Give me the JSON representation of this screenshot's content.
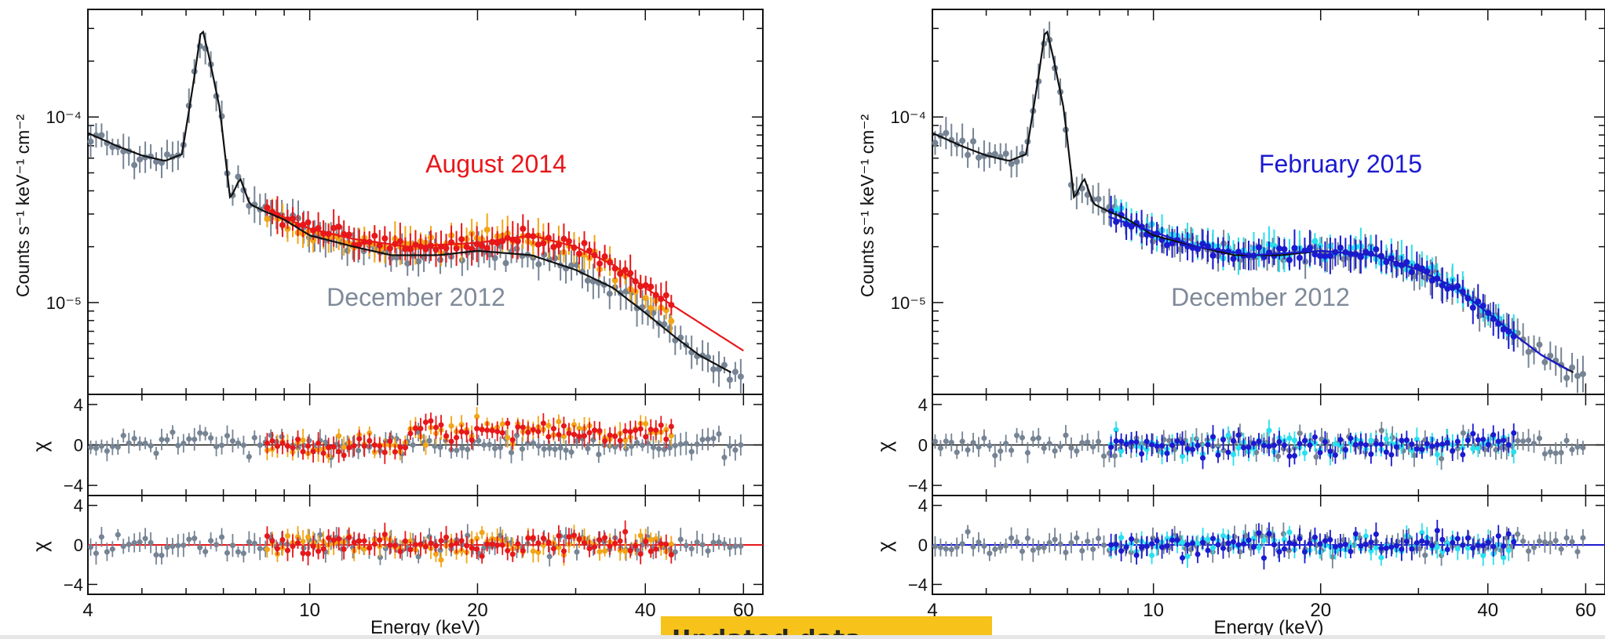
{
  "chart_data": [
    {
      "type": "scatter",
      "title": "",
      "annotations": [
        "August 2014",
        "December 2012"
      ],
      "annotation_colors": [
        "#e8171a",
        "#7f8a99"
      ],
      "xlabel": "Energy (keV)",
      "xscale": "log",
      "xlim": [
        4,
        65
      ],
      "xticks": [
        4,
        10,
        20,
        40,
        60
      ],
      "ylabel": "Counts s⁻¹ keV⁻¹ cm⁻²",
      "yscale": "log",
      "ylim": [
        3.2e-06,
        0.00038
      ],
      "yticks": [
        {
          "value": 0.0001,
          "label": "10⁻⁴"
        },
        {
          "value": 1e-05,
          "label": "10⁻⁵"
        }
      ],
      "residual_ylabel": "χ",
      "residual_ylim": [
        -5,
        5
      ],
      "residual_yticks": [
        4,
        0,
        -4
      ],
      "series": [
        {
          "color": "#768494",
          "model": {
            "color": "#111111",
            "points": [
              [
                4.0,
                8.2e-05
              ],
              [
                4.5,
                7e-05
              ],
              [
                5.0,
                6.2e-05
              ],
              [
                5.5,
                5.8e-05
              ],
              [
                5.9,
                6.3e-05
              ],
              [
                6.2,
                0.00016
              ],
              [
                6.4,
                0.00031
              ],
              [
                6.6,
                0.00021
              ],
              [
                6.9,
                0.00011
              ],
              [
                7.2,
                3.6e-05
              ],
              [
                7.5,
                4.7e-05
              ],
              [
                7.8,
                3.4e-05
              ],
              [
                8.3,
                3.1e-05
              ],
              [
                9.0,
                2.8e-05
              ],
              [
                10,
                2.3e-05
              ],
              [
                12,
                2e-05
              ],
              [
                14,
                1.8e-05
              ],
              [
                17,
                1.8e-05
              ],
              [
                20,
                1.9e-05
              ],
              [
                25,
                1.8e-05
              ],
              [
                30,
                1.5e-05
              ],
              [
                35,
                1.2e-05
              ],
              [
                40,
                8.8e-06
              ],
              [
                45,
                6.6e-06
              ],
              [
                50,
                5.2e-06
              ],
              [
                57,
                4.2e-06
              ]
            ]
          }
        },
        {
          "color": "#f2a516",
          "x_range": [
            8.3,
            45
          ]
        },
        {
          "color": "#e8171a",
          "model": {
            "color": "#e8171a",
            "points": [
              [
                8.3,
                3.2e-05
              ],
              [
                10,
                2.5e-05
              ],
              [
                12,
                2.2e-05
              ],
              [
                15,
                2e-05
              ],
              [
                20,
                2.1e-05
              ],
              [
                25,
                2.3e-05
              ],
              [
                30,
                2e-05
              ],
              [
                35,
                1.6e-05
              ],
              [
                40,
                1.2e-05
              ],
              [
                50,
                7.8e-06
              ],
              [
                60,
                5.5e-06
              ]
            ]
          }
        }
      ]
    },
    {
      "type": "scatter",
      "title": "",
      "annotations": [
        "February 2015",
        "December 2012"
      ],
      "annotation_colors": [
        "#1c1ad0",
        "#7f8a99"
      ],
      "xlabel": "Energy (keV)",
      "xscale": "log",
      "xlim": [
        4,
        65
      ],
      "xticks": [
        4,
        10,
        20,
        40,
        60
      ],
      "ylabel": "Counts s⁻¹ keV⁻¹ cm⁻²",
      "yscale": "log",
      "ylim": [
        3.2e-06,
        0.00038
      ],
      "yticks": [
        {
          "value": 0.0001,
          "label": "10⁻⁴"
        },
        {
          "value": 1e-05,
          "label": "10⁻⁵"
        }
      ],
      "residual_ylabel": "χ",
      "residual_ylim": [
        -5,
        5
      ],
      "residual_yticks": [
        4,
        0,
        -4
      ],
      "series": [
        {
          "color": "#768494",
          "model": {
            "color": "#111111",
            "points": [
              [
                4.0,
                8.2e-05
              ],
              [
                4.5,
                7e-05
              ],
              [
                5.0,
                6.2e-05
              ],
              [
                5.5,
                5.8e-05
              ],
              [
                5.9,
                6.3e-05
              ],
              [
                6.2,
                0.00016
              ],
              [
                6.4,
                0.00031
              ],
              [
                6.6,
                0.00021
              ],
              [
                6.9,
                0.00011
              ],
              [
                7.2,
                3.6e-05
              ],
              [
                7.5,
                4.7e-05
              ],
              [
                7.8,
                3.4e-05
              ],
              [
                8.3,
                3.1e-05
              ],
              [
                9.0,
                2.8e-05
              ],
              [
                10,
                2.3e-05
              ],
              [
                12,
                2e-05
              ],
              [
                14,
                1.8e-05
              ],
              [
                17,
                1.8e-05
              ],
              [
                20,
                1.9e-05
              ],
              [
                25,
                1.8e-05
              ],
              [
                30,
                1.5e-05
              ],
              [
                35,
                1.2e-05
              ],
              [
                40,
                8.8e-06
              ],
              [
                45,
                6.6e-06
              ],
              [
                50,
                5.2e-06
              ],
              [
                57,
                4.2e-06
              ]
            ]
          }
        },
        {
          "color": "#28e0ee",
          "x_range": [
            8.3,
            45
          ]
        },
        {
          "color": "#1c1ad0",
          "model": {
            "color": "#1c1ad0",
            "points": [
              [
                8.3,
                2.9e-05
              ],
              [
                10,
                2.4e-05
              ],
              [
                12,
                2e-05
              ],
              [
                15,
                1.8e-05
              ],
              [
                20,
                1.9e-05
              ],
              [
                25,
                1.8e-05
              ],
              [
                30,
                1.5e-05
              ],
              [
                35,
                1.2e-05
              ],
              [
                40,
                8.8e-06
              ],
              [
                45,
                6.6e-06
              ],
              [
                50,
                5.2e-06
              ],
              [
                56,
                4.3e-06
              ]
            ]
          }
        }
      ]
    }
  ],
  "banner": {
    "text": "Updated data"
  }
}
